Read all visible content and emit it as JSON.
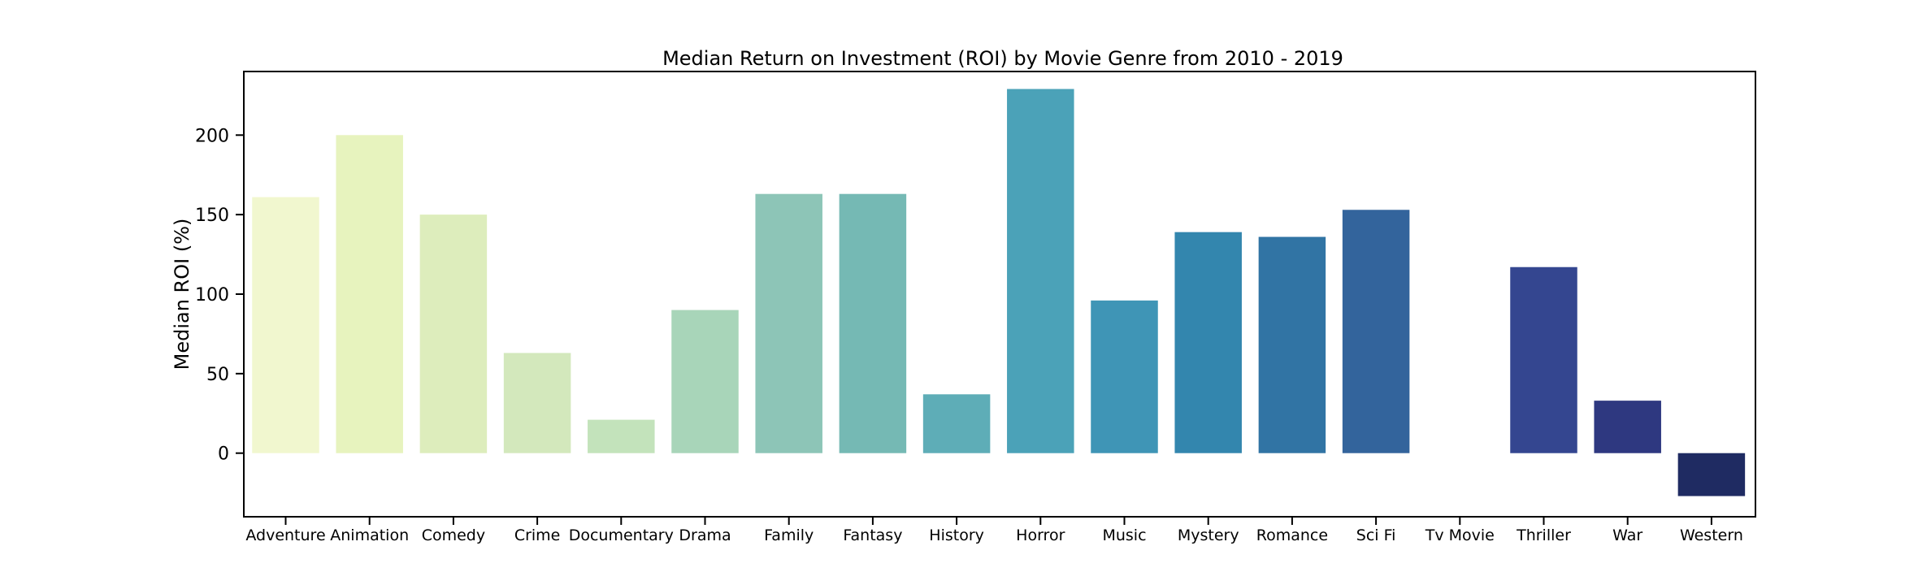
{
  "chart_data": {
    "type": "bar",
    "title": "Median Return on Investment (ROI) by Movie Genre from 2010 - 2019",
    "xlabel": "",
    "ylabel": "Median ROI (%)",
    "ylim": [
      -40,
      240
    ],
    "yticks": [
      "0",
      "50",
      "100",
      "150",
      "200"
    ],
    "grid": false,
    "legend": "none",
    "categories": [
      "Adventure",
      "Animation",
      "Comedy",
      "Crime",
      "Documentary",
      "Drama",
      "Family",
      "Fantasy",
      "History",
      "Horror",
      "Music",
      "Mystery",
      "Romance",
      "Sci Fi",
      "Tv Movie",
      "Thriller",
      "War",
      "Western"
    ],
    "values": [
      161,
      200,
      150,
      63,
      21,
      90,
      163,
      163,
      37,
      229,
      96,
      139,
      136,
      153,
      0,
      117,
      33,
      -27
    ],
    "colors": [
      "#f1f7cf",
      "#e7f3be",
      "#ddedbc",
      "#d3e8bc",
      "#c3e3bb",
      "#a8d5b9",
      "#8dc5b7",
      "#75b9b4",
      "#5eadb7",
      "#4ba2b8",
      "#3f95b6",
      "#3386ae",
      "#3174a4",
      "#33649c",
      "#345396",
      "#344690",
      "#2e3880",
      "#1f2b62"
    ]
  }
}
